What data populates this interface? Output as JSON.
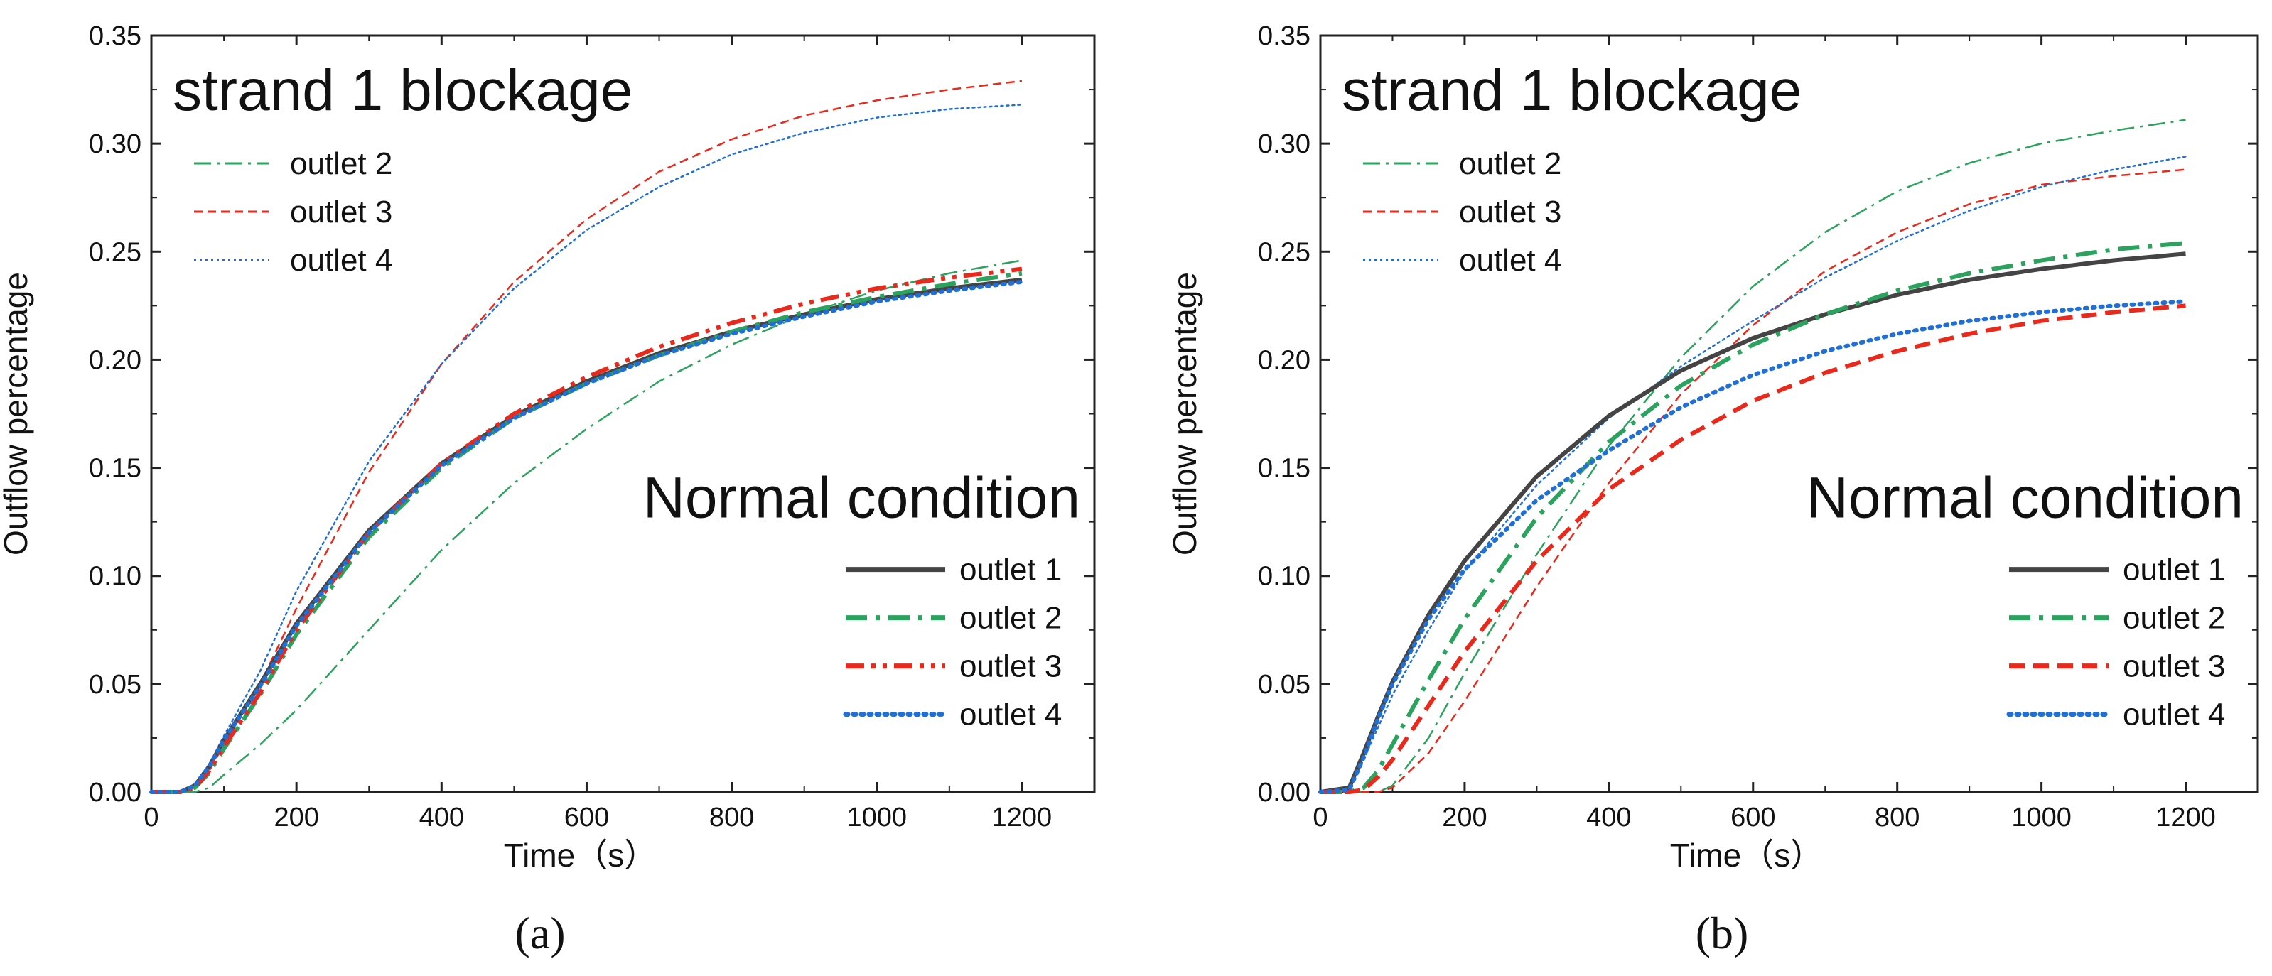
{
  "chart_data": [
    {
      "panel": "(a)",
      "type": "line",
      "xlabel": "Time（s）",
      "ylabel": "Outflow percentage",
      "xlim": [
        0,
        1300
      ],
      "ylim": [
        0,
        0.35
      ],
      "xticks": [
        0,
        200,
        400,
        600,
        800,
        1000,
        1200
      ],
      "yticks": [
        "0.00",
        "0.05",
        "0.10",
        "0.15",
        "0.20",
        "0.25",
        "0.30",
        "0.35"
      ],
      "annotation_top": "strand 1 blockage",
      "annotation_bottom": "Normal condition",
      "x": [
        0,
        40,
        60,
        80,
        100,
        150,
        200,
        300,
        400,
        500,
        600,
        700,
        800,
        900,
        1000,
        1100,
        1200
      ],
      "blockage_series": [
        {
          "name": "outlet 2",
          "color": "#2ca25f",
          "style": "dashdot",
          "width": 2.5,
          "values": [
            0,
            0,
            0,
            0.002,
            0.008,
            0.022,
            0.038,
            0.075,
            0.112,
            0.143,
            0.168,
            0.19,
            0.207,
            0.221,
            0.232,
            0.24,
            0.246
          ]
        },
        {
          "name": "outlet 3",
          "color": "#e8291c",
          "style": "dashed",
          "width": 2.5,
          "values": [
            0,
            0,
            0.002,
            0.01,
            0.022,
            0.05,
            0.085,
            0.148,
            0.198,
            0.236,
            0.265,
            0.287,
            0.302,
            0.313,
            0.32,
            0.325,
            0.329
          ]
        },
        {
          "name": "outlet 4",
          "color": "#1f6fd6",
          "style": "dotted",
          "width": 2.5,
          "values": [
            0,
            0,
            0.003,
            0.013,
            0.026,
            0.056,
            0.093,
            0.153,
            0.198,
            0.233,
            0.26,
            0.28,
            0.295,
            0.305,
            0.312,
            0.316,
            0.318
          ]
        }
      ],
      "normal_series": [
        {
          "name": "outlet 1",
          "color": "#444444",
          "style": "solid",
          "width": 6,
          "values": [
            0,
            0,
            0.003,
            0.012,
            0.024,
            0.05,
            0.078,
            0.121,
            0.152,
            0.174,
            0.19,
            0.203,
            0.213,
            0.221,
            0.228,
            0.233,
            0.237
          ]
        },
        {
          "name": "outlet 2",
          "color": "#2ca25f",
          "style": "dashdot",
          "width": 6,
          "values": [
            0,
            0,
            0.002,
            0.009,
            0.02,
            0.045,
            0.073,
            0.118,
            0.15,
            0.173,
            0.189,
            0.202,
            0.213,
            0.222,
            0.229,
            0.235,
            0.24
          ]
        },
        {
          "name": "outlet 3",
          "color": "#e8291c",
          "style": "dashdotdot",
          "width": 6,
          "values": [
            0,
            0,
            0.002,
            0.01,
            0.021,
            0.046,
            0.075,
            0.12,
            0.152,
            0.175,
            0.192,
            0.206,
            0.217,
            0.226,
            0.233,
            0.238,
            0.242
          ]
        },
        {
          "name": "outlet 4",
          "color": "#1f6fd6",
          "style": "dotted",
          "width": 6,
          "values": [
            0,
            0,
            0.003,
            0.012,
            0.024,
            0.049,
            0.077,
            0.12,
            0.151,
            0.173,
            0.189,
            0.202,
            0.212,
            0.22,
            0.227,
            0.232,
            0.236
          ]
        }
      ]
    },
    {
      "panel": "(b)",
      "type": "line",
      "xlabel": "Time（s）",
      "ylabel": "Outflow percentage",
      "xlim": [
        0,
        1300
      ],
      "ylim": [
        0,
        0.35
      ],
      "xticks": [
        0,
        200,
        400,
        600,
        800,
        1000,
        1200
      ],
      "yticks": [
        "0.00",
        "0.05",
        "0.10",
        "0.15",
        "0.20",
        "0.25",
        "0.30",
        "0.35"
      ],
      "annotation_top": "strand 1 blockage",
      "annotation_bottom": "Normal condition",
      "x": [
        0,
        40,
        60,
        80,
        100,
        150,
        200,
        300,
        400,
        500,
        600,
        700,
        800,
        900,
        1000,
        1100,
        1200
      ],
      "blockage_series": [
        {
          "name": "outlet 2",
          "color": "#2ca25f",
          "style": "dashdot",
          "width": 2.5,
          "values": [
            0,
            0,
            0,
            0,
            0.003,
            0.025,
            0.055,
            0.11,
            0.16,
            0.201,
            0.234,
            0.259,
            0.278,
            0.291,
            0.3,
            0.306,
            0.311
          ]
        },
        {
          "name": "outlet 3",
          "color": "#e8291c",
          "style": "dashed",
          "width": 2.5,
          "values": [
            0,
            0,
            0,
            0,
            0.002,
            0.018,
            0.042,
            0.095,
            0.143,
            0.184,
            0.216,
            0.241,
            0.259,
            0.272,
            0.281,
            0.285,
            0.288
          ]
        },
        {
          "name": "outlet 4",
          "color": "#1f6fd6",
          "style": "dotted",
          "width": 2.5,
          "values": [
            0,
            0.001,
            0.015,
            0.03,
            0.045,
            0.075,
            0.102,
            0.142,
            0.173,
            0.197,
            0.218,
            0.238,
            0.255,
            0.269,
            0.28,
            0.288,
            0.294
          ]
        }
      ],
      "normal_series": [
        {
          "name": "outlet 1",
          "color": "#444444",
          "style": "solid",
          "width": 6,
          "values": [
            0,
            0.002,
            0.018,
            0.035,
            0.051,
            0.082,
            0.107,
            0.146,
            0.174,
            0.195,
            0.21,
            0.221,
            0.23,
            0.237,
            0.242,
            0.246,
            0.249
          ]
        },
        {
          "name": "outlet 2",
          "color": "#2ca25f",
          "style": "dashdot",
          "width": 6,
          "values": [
            0,
            0,
            0.002,
            0.01,
            0.022,
            0.052,
            0.08,
            0.127,
            0.162,
            0.188,
            0.207,
            0.221,
            0.232,
            0.24,
            0.246,
            0.251,
            0.254
          ]
        },
        {
          "name": "outlet 3",
          "color": "#e8291c",
          "style": "dashed",
          "width": 6,
          "values": [
            0,
            0,
            0.001,
            0.007,
            0.015,
            0.04,
            0.065,
            0.107,
            0.14,
            0.163,
            0.181,
            0.194,
            0.204,
            0.212,
            0.218,
            0.222,
            0.225
          ]
        },
        {
          "name": "outlet 4",
          "color": "#1f6fd6",
          "style": "dotted",
          "width": 6,
          "values": [
            0,
            0.001,
            0.016,
            0.034,
            0.05,
            0.08,
            0.103,
            0.135,
            0.158,
            0.178,
            0.193,
            0.204,
            0.212,
            0.218,
            0.222,
            0.225,
            0.227
          ]
        }
      ]
    }
  ]
}
